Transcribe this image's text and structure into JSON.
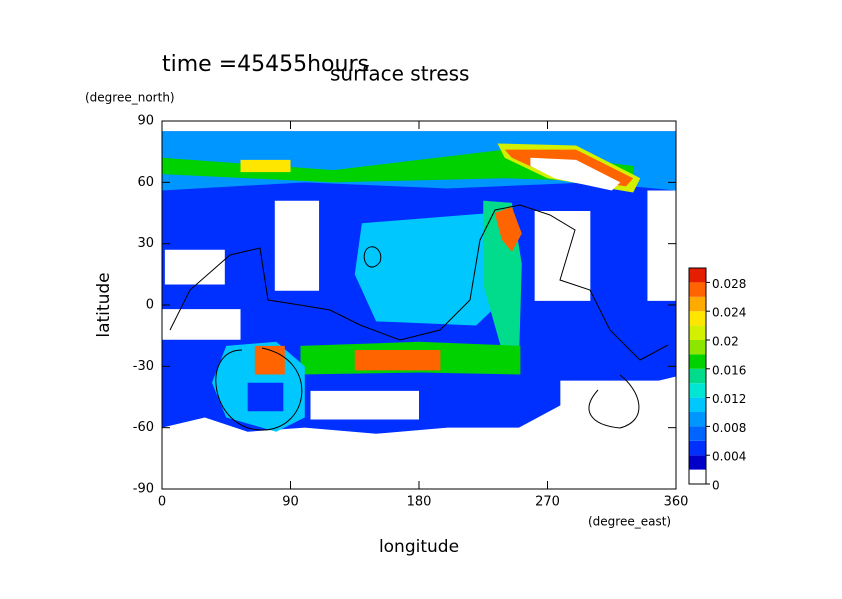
{
  "chart_data": {
    "type": "contour",
    "title": "surface stress",
    "time_label": "time =45455hours",
    "x_label": "longitude",
    "x_unit": "(degree_east)",
    "y_label": "latitude",
    "y_unit": "(degree_north)",
    "xlim": [
      0,
      360
    ],
    "ylim": [
      -90,
      90
    ],
    "xticks": [
      0,
      90,
      180,
      270,
      360
    ],
    "yticks": [
      90,
      60,
      30,
      0,
      -30,
      -60,
      -90
    ],
    "colorbar": {
      "levels": [
        0,
        0.002,
        0.004,
        0.006,
        0.008,
        0.01,
        0.012,
        0.014,
        0.016,
        0.018,
        0.02,
        0.022,
        0.024,
        0.026,
        0.028,
        0.03
      ],
      "colors": [
        "#ffffff",
        "#0000c8",
        "#0030ff",
        "#0064ff",
        "#0096ff",
        "#00c8ff",
        "#00e6d2",
        "#00dc8c",
        "#00d200",
        "#8ce600",
        "#d2f000",
        "#ffe600",
        "#ffaa00",
        "#ff6400",
        "#e61e00"
      ],
      "ticks": [
        0,
        0.004,
        0.008,
        0.012,
        0.016,
        0.02,
        0.024,
        0.028
      ]
    },
    "regions": [
      {
        "level": 0.004,
        "lon": [
          0,
          360,
          360,
          330,
          290,
          250,
          200,
          150,
          100,
          60,
          30,
          0
        ],
        "lat": [
          85,
          85,
          -35,
          -40,
          -45,
          -60,
          -60,
          -63,
          -60,
          -62,
          -55,
          -60
        ]
      },
      {
        "level": 0.008,
        "lon": [
          0,
          360,
          360,
          300,
          200,
          100,
          0
        ],
        "lat": [
          85,
          85,
          56,
          60,
          57,
          60,
          56
        ]
      },
      {
        "level": 0.016,
        "lon": [
          0,
          120,
          240,
          330,
          330,
          240,
          120,
          0
        ],
        "lat": [
          72,
          66,
          76,
          68,
          60,
          62,
          60,
          64
        ]
      },
      {
        "level": 0.022,
        "lon": [
          55,
          90,
          90,
          55
        ],
        "lat": [
          71,
          71,
          65,
          65
        ]
      },
      {
        "level": 0.02,
        "lon": [
          235,
          290,
          335,
          330,
          270,
          240
        ],
        "lat": [
          79,
          78,
          62,
          55,
          62,
          72
        ]
      },
      {
        "level": 0.026,
        "lon": [
          240,
          290,
          330,
          325,
          270,
          245
        ],
        "lat": [
          76,
          76,
          62,
          58,
          64,
          72
        ]
      },
      {
        "level": 0,
        "lon": [
          258,
          290,
          321,
          315,
          275,
          258
        ],
        "lat": [
          72,
          71,
          60,
          56,
          62,
          68
        ]
      },
      {
        "level": 0.01,
        "lon": [
          140,
          230,
          250,
          220,
          150,
          135
        ],
        "lat": [
          40,
          45,
          10,
          -10,
          -8,
          15
        ]
      },
      {
        "level": 0.014,
        "lon": [
          225,
          245,
          252,
          250,
          240,
          225
        ],
        "lat": [
          51,
          50,
          20,
          -27,
          -27,
          10
        ]
      },
      {
        "level": 0.026,
        "lon": [
          233,
          245,
          252,
          245,
          238
        ],
        "lat": [
          45,
          48,
          35,
          26,
          32
        ]
      },
      {
        "level": 0.016,
        "lon": [
          97,
          180,
          251,
          251,
          180,
          97
        ],
        "lat": [
          -20,
          -18,
          -20,
          -34,
          -33,
          -34
        ]
      },
      {
        "level": 0.026,
        "lon": [
          135,
          195,
          195,
          135
        ],
        "lat": [
          -22,
          -22,
          -32,
          -32
        ]
      },
      {
        "level": 0.01,
        "lon": [
          45,
          80,
          100,
          100,
          80,
          45,
          35
        ],
        "lat": [
          -20,
          -18,
          -30,
          -55,
          -62,
          -55,
          -38
        ]
      },
      {
        "level": 0.004,
        "lon": [
          60,
          85,
          85,
          60
        ],
        "lat": [
          -38,
          -38,
          -52,
          -52
        ]
      },
      {
        "level": 0.026,
        "lon": [
          65,
          86,
          86,
          65
        ],
        "lat": [
          -20,
          -20,
          -34,
          -34
        ]
      },
      {
        "level": 0,
        "lon": [
          2,
          44,
          44,
          2
        ],
        "lat": [
          27,
          27,
          10,
          10
        ]
      },
      {
        "level": 0,
        "lon": [
          79,
          110,
          110,
          79
        ],
        "lat": [
          51,
          51,
          7,
          7
        ]
      },
      {
        "level": 0,
        "lon": [
          261,
          300,
          300,
          261
        ],
        "lat": [
          46,
          46,
          2,
          2
        ]
      },
      {
        "level": 0,
        "lon": [
          0,
          55,
          55,
          0
        ],
        "lat": [
          -2,
          -2,
          -17,
          -17
        ]
      },
      {
        "level": 0,
        "lon": [
          340,
          360,
          360,
          340
        ],
        "lat": [
          56,
          56,
          2,
          2
        ]
      },
      {
        "level": 0,
        "lon": [
          104,
          180,
          180,
          104
        ],
        "lat": [
          -42,
          -42,
          -56,
          -56
        ]
      },
      {
        "level": 0,
        "lon": [
          279,
          360,
          360,
          279
        ],
        "lat": [
          -37,
          -37,
          -66,
          -66
        ]
      }
    ]
  }
}
